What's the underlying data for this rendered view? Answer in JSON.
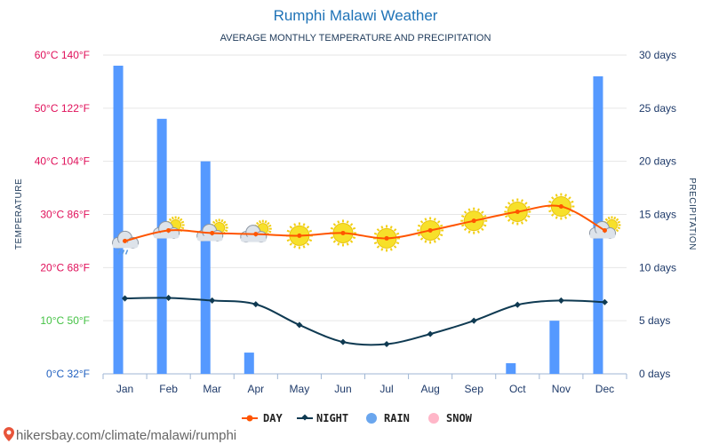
{
  "title": "Rumphi Malawi Weather",
  "subtitle": "AVERAGE MONTHLY TEMPERATURE AND PRECIPITATION",
  "y_left_title": "TEMPERATURE",
  "y_right_title": "PRECIPITATION",
  "source_url": "hikersbay.com/climate/malawi/rumphi",
  "colors": {
    "day": "#ff5500",
    "night": "#0f3a52",
    "rain": "#5599ff",
    "snow": "#ffb6c8",
    "grid": "#e6e6e6"
  },
  "chart_data": {
    "type": "bar+line",
    "categories": [
      "Jan",
      "Feb",
      "Mar",
      "Apr",
      "May",
      "Jun",
      "Jul",
      "Aug",
      "Sep",
      "Oct",
      "Nov",
      "Dec"
    ],
    "series": [
      {
        "name": "DAY",
        "type": "line",
        "unit": "°C",
        "values": [
          25,
          27,
          26.5,
          26.3,
          26,
          26.5,
          25.5,
          27,
          28.8,
          30.5,
          31.5,
          27
        ]
      },
      {
        "name": "NIGHT",
        "type": "line",
        "unit": "°C",
        "values": [
          14.2,
          14.3,
          13.8,
          13.1,
          9.2,
          6,
          5.6,
          7.5,
          10,
          13,
          13.8,
          13.5
        ]
      },
      {
        "name": "RAIN",
        "type": "bar",
        "unit": "days",
        "values": [
          29,
          24,
          20,
          2,
          0,
          0,
          0,
          0,
          0,
          1,
          5,
          28
        ]
      },
      {
        "name": "SNOW",
        "type": "bar",
        "unit": "days",
        "values": [
          0,
          0,
          0,
          0,
          0,
          0,
          0,
          0,
          0,
          0,
          0,
          0
        ]
      }
    ],
    "weather_icons": [
      "cloud-rain",
      "cloud-sun",
      "cloud-sun",
      "cloud-sun",
      "sun",
      "sun",
      "sun",
      "sun",
      "sun",
      "sun",
      "sun",
      "cloud-sun"
    ],
    "y_left": {
      "ticks": [
        0,
        10,
        20,
        30,
        40,
        50,
        60
      ],
      "labels": [
        "0°C 32°F",
        "10°C 50°F",
        "20°C 68°F",
        "30°C 86°F",
        "40°C 104°F",
        "50°C 122°F",
        "60°C 140°F"
      ],
      "label_colors": [
        "#1f5fbf",
        "#44c244",
        "#e0105a",
        "#e0105a",
        "#e0105a",
        "#e0105a",
        "#e0105a"
      ],
      "range": [
        0,
        60
      ]
    },
    "y_right": {
      "ticks": [
        0,
        5,
        10,
        15,
        20,
        25,
        30
      ],
      "labels": [
        "0 days",
        "5 days",
        "10 days",
        "15 days",
        "20 days",
        "25 days",
        "30 days"
      ],
      "range": [
        0,
        30
      ]
    },
    "legend": [
      "DAY",
      "NIGHT",
      "RAIN",
      "SNOW"
    ],
    "legend_position": "bottom"
  }
}
